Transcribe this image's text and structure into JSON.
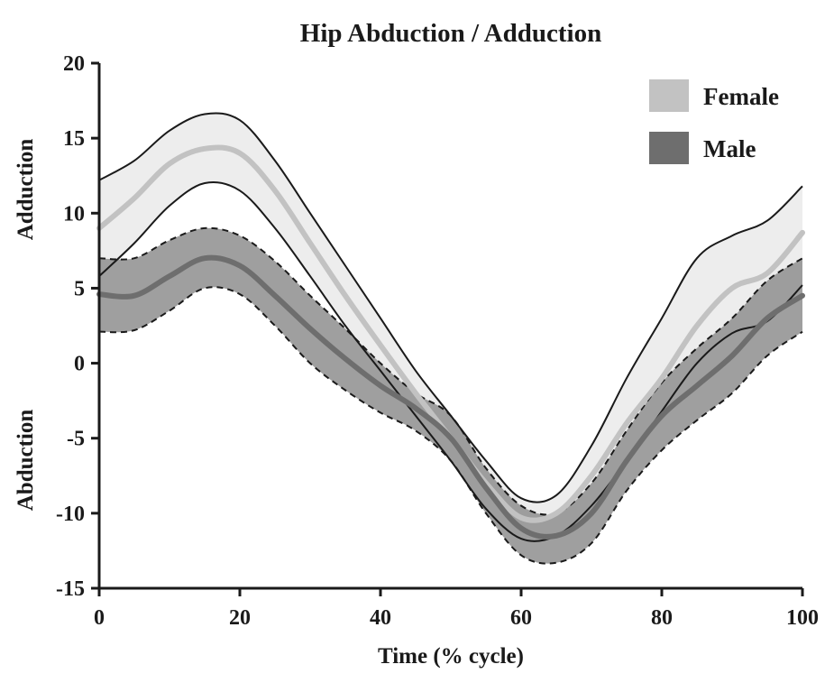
{
  "chart_data": {
    "type": "line",
    "title": "Hip Abduction / Adduction",
    "xlabel": "Time (% cycle)",
    "ylabel_positive": "Adduction",
    "ylabel_negative": "Abduction",
    "xlim": [
      0,
      100
    ],
    "ylim": [
      -15,
      20
    ],
    "xticks": [
      0,
      20,
      40,
      60,
      80,
      100
    ],
    "yticks": [
      20,
      15,
      10,
      5,
      0,
      -5,
      -10,
      -15
    ],
    "xtick_labels": [
      "0",
      "20",
      "40",
      "60",
      "80",
      "100"
    ],
    "ytick_labels": [
      "20",
      "15",
      "10",
      "5",
      "0",
      "-5",
      "-10",
      "-15"
    ],
    "grid": false,
    "legend_position": "top-right",
    "x": [
      0,
      5,
      10,
      15,
      20,
      25,
      30,
      35,
      40,
      45,
      50,
      55,
      60,
      65,
      70,
      75,
      80,
      85,
      90,
      95,
      100
    ],
    "series": [
      {
        "name": "Female",
        "color": "#c2c2c2",
        "band_color": "#ececec",
        "edge_color": "#1a1a1a",
        "edge_style": "solid",
        "mean": [
          9.0,
          11.0,
          13.3,
          14.3,
          14.0,
          11.5,
          8.0,
          4.5,
          1.2,
          -2.0,
          -5.0,
          -8.0,
          -10.3,
          -10.0,
          -7.5,
          -4.0,
          -1.0,
          2.5,
          5.0,
          6.0,
          8.7
        ],
        "upper": [
          12.2,
          13.5,
          15.5,
          16.6,
          16.2,
          13.5,
          10.0,
          6.5,
          3.0,
          -0.5,
          -3.5,
          -6.5,
          -9.0,
          -8.8,
          -5.5,
          -1.0,
          3.0,
          7.0,
          8.5,
          9.5,
          11.8
        ],
        "lower": [
          5.8,
          8.0,
          10.5,
          12.0,
          11.5,
          9.0,
          5.8,
          2.5,
          -0.5,
          -3.5,
          -6.5,
          -9.7,
          -11.7,
          -11.5,
          -9.5,
          -6.5,
          -3.2,
          0.0,
          2.0,
          2.8,
          5.2
        ]
      },
      {
        "name": "Male",
        "color": "#6e6e6e",
        "band_color": "#8e8e8e",
        "edge_color": "#1a1a1a",
        "edge_style": "dashed",
        "mean": [
          4.6,
          4.5,
          5.8,
          7.0,
          6.5,
          4.5,
          2.3,
          0.3,
          -1.5,
          -3.0,
          -5.0,
          -8.3,
          -11.0,
          -11.5,
          -10.0,
          -6.5,
          -3.5,
          -1.5,
          0.5,
          3.0,
          4.5
        ],
        "upper": [
          7.0,
          7.0,
          8.2,
          9.0,
          8.5,
          6.8,
          4.5,
          2.3,
          0.0,
          -2.0,
          -3.5,
          -7.0,
          -9.5,
          -10.0,
          -8.0,
          -4.5,
          -1.3,
          1.0,
          3.0,
          5.5,
          7.0
        ],
        "lower": [
          2.1,
          2.2,
          3.5,
          5.0,
          4.6,
          2.5,
          0.0,
          -1.8,
          -3.3,
          -4.5,
          -6.5,
          -10.0,
          -12.8,
          -13.3,
          -12.0,
          -8.5,
          -5.8,
          -3.8,
          -2.0,
          0.5,
          2.1
        ]
      }
    ]
  }
}
